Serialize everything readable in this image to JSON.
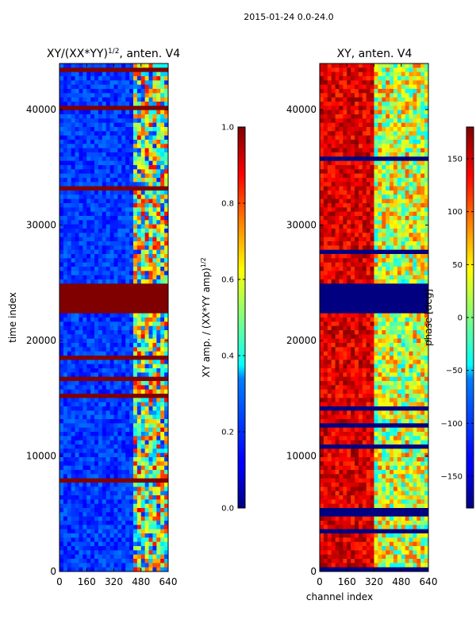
{
  "suptitle": "2015-01-24 0.0-24.0",
  "chart_data": [
    {
      "type": "heatmap",
      "title": "XY/(XX*YY)^{1/2}, anten. V4",
      "title_base": "XY/(XX*YY)",
      "title_exp": "1/2",
      "title_suffix": ", anten. V4",
      "xlabel": "",
      "ylabel": "time index",
      "xlim": [
        0,
        640
      ],
      "ylim": [
        0,
        44000
      ],
      "xticks": [
        "0",
        "160",
        "320",
        "480",
        "640"
      ],
      "yticks": [
        "0",
        "10000",
        "20000",
        "30000",
        "40000"
      ],
      "colormap": "jet",
      "colorbar": {
        "label": "XY amp. / (XX*YY amp)^{1/2}",
        "label_base": "XY amp. / (XX*YY amp)",
        "label_exp": "1/2",
        "range": [
          0.0,
          1.0
        ],
        "ticks": [
          "0.0",
          "0.2",
          "0.4",
          "0.6",
          "0.8",
          "1.0"
        ]
      },
      "dominant_value": 0.12,
      "bright_channel_range": [
        430,
        640
      ],
      "saturated_time_band": [
        22400,
        24800
      ],
      "saturated_value": 1.0
    },
    {
      "type": "heatmap",
      "title": "XY, anten. V4",
      "xlabel": "channel index",
      "ylabel": "",
      "xlim": [
        0,
        640
      ],
      "ylim": [
        0,
        44000
      ],
      "xticks": [
        "0",
        "160",
        "320",
        "480",
        "640"
      ],
      "yticks": [
        "0",
        "10000",
        "20000",
        "30000",
        "40000"
      ],
      "colormap": "jet",
      "colorbar": {
        "label": "phase [deg]",
        "range": [
          -180,
          180
        ],
        "ticks": [
          "−150",
          "−100",
          "−50",
          "0",
          "50",
          "100",
          "150"
        ]
      },
      "band_low_channels": [
        0,
        320
      ],
      "band_low_value": 150,
      "saturated_time_band": [
        22400,
        24800
      ],
      "saturated_value": -180
    }
  ],
  "colors": {
    "jet_min": "#00007f",
    "jet_max": "#7f0000"
  }
}
